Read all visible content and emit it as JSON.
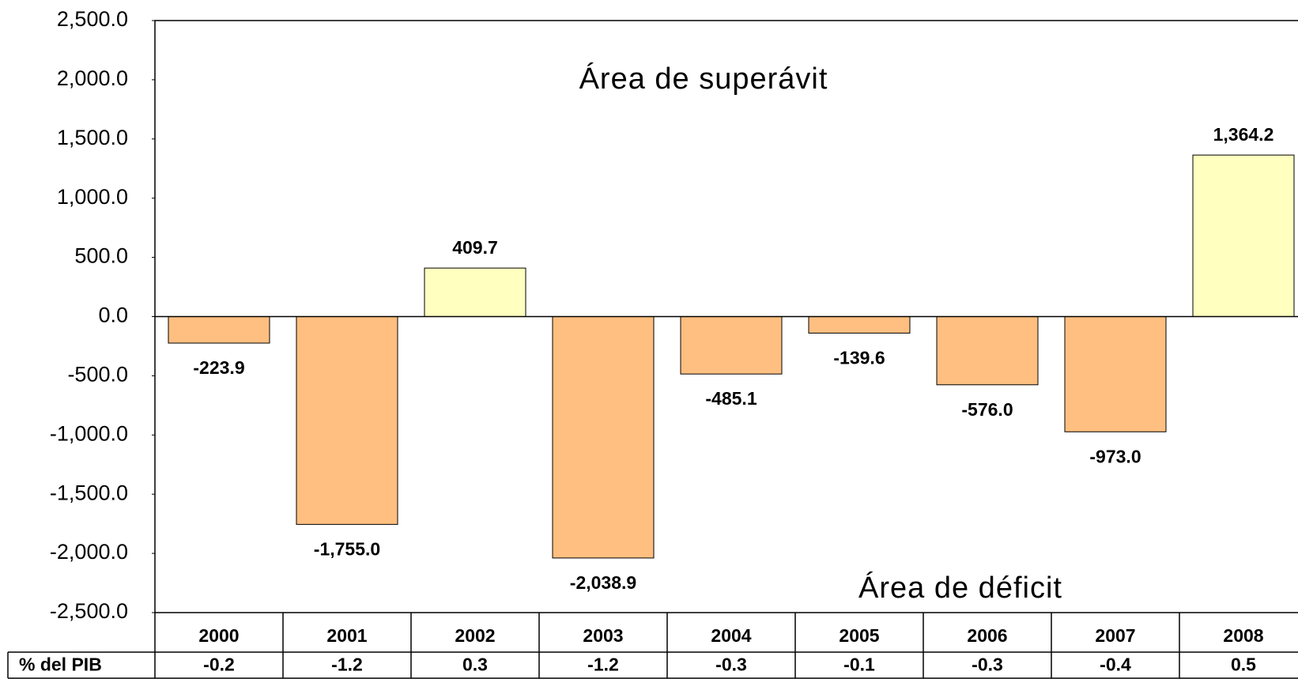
{
  "chart_data": {
    "type": "bar",
    "annotations": [
      "Área de superávit",
      "Área de déficit"
    ],
    "categories": [
      "2000",
      "2001",
      "2002",
      "2003",
      "2004",
      "2005",
      "2006",
      "2007",
      "2008"
    ],
    "values": [
      -223.9,
      -1755.0,
      409.7,
      -2038.9,
      -485.1,
      -139.6,
      -576.0,
      -973.0,
      1364.2
    ],
    "value_labels": [
      "-223.9",
      "-1,755.0",
      "409.7",
      "-2,038.9",
      "-485.1",
      "-139.6",
      "-576.0",
      "-973.0",
      "1,364.2"
    ],
    "positive_color": "#ffffc0",
    "negative_color": "#ffbf80",
    "ylim": [
      -2500,
      2500
    ],
    "yticks": [
      {
        "value": 2500,
        "label": "2,500.0"
      },
      {
        "value": 2000,
        "label": "2,000.0"
      },
      {
        "value": 1500,
        "label": "1,500.0"
      },
      {
        "value": 1000,
        "label": "1,000.0"
      },
      {
        "value": 500,
        "label": "500.0"
      },
      {
        "value": 0,
        "label": "0.0"
      },
      {
        "value": -500,
        "label": "-500.0"
      },
      {
        "value": -1000,
        "label": "-1,000.0"
      },
      {
        "value": -1500,
        "label": "-1,500.0"
      },
      {
        "value": -2000,
        "label": "-2,000.0"
      },
      {
        "value": -2500,
        "label": "-2,500.0"
      }
    ],
    "pib_share": {
      "label": "% del PIB",
      "values": [
        -0.2,
        -1.2,
        0.3,
        -1.2,
        -0.3,
        -0.1,
        -0.3,
        -0.4,
        0.5
      ]
    }
  }
}
